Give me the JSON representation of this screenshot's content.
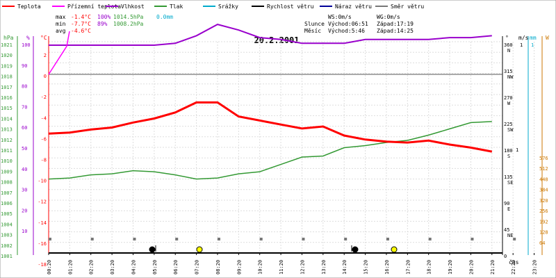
{
  "chart_data": {
    "type": "line",
    "title": "20.2.2001",
    "legend": [
      {
        "label": "Teplota",
        "color": "#ff0000"
      },
      {
        "label": "Přízemní teplota",
        "color": "#ff00ff"
      },
      {
        "label": "Vlhkost",
        "color": "#9900cc"
      },
      {
        "label": "Tlak",
        "color": "#339933"
      },
      {
        "label": "Srážky",
        "color": "#00aacc"
      },
      {
        "label": "Rychlost větru",
        "color": "#000000"
      },
      {
        "label": "Náraz větru",
        "color": "#000099"
      },
      {
        "label": "Směr větru",
        "color": "#777777"
      }
    ],
    "stats": {
      "max_label": "max",
      "max_temp": "-1.4°C",
      "max_hum": "100%",
      "max_press": "1014.5hPa",
      "max_rain": "0.0mm",
      "min_label": "min",
      "min_temp": "-7.7°C",
      "min_hum": "89%",
      "min_press": "1008.2hPa",
      "avg_label": "avg",
      "avg_temp": "-4.6°C"
    },
    "info": {
      "ws": "WS:0m/s",
      "wg": "WG:0m/s",
      "sun_label": "Slunce",
      "sun_rise": "Východ:06:51",
      "sun_set": "Západ:17:19",
      "moon_label": "Měsíc",
      "moon_rise": "Východ:5:46",
      "moon_set": "Západ:14:25"
    },
    "axes": {
      "hpa_unit": "hPa",
      "hpa_ticks": [
        "1021",
        "1020",
        "1019",
        "1018",
        "1017",
        "1016",
        "1015",
        "1014",
        "1013",
        "1012",
        "1011",
        "1010",
        "1009",
        "1008",
        "1007",
        "1006",
        "1005",
        "1004",
        "1003",
        "1002",
        "1001"
      ],
      "hum_unit": "%",
      "hum_ticks": [
        "100",
        "90",
        "80",
        "70",
        "60",
        "50",
        "40",
        "30",
        "20",
        "10"
      ],
      "temp_unit": "°C",
      "temp_ticks": [
        "2",
        "0",
        "-2",
        "-4",
        "-6",
        "-8",
        "-10",
        "-12",
        "-14",
        "-16",
        "-18"
      ],
      "dir_unit": "°",
      "dir_ticks": [
        {
          "deg": "360",
          "dir": "N"
        },
        {
          "deg": "315",
          "dir": "NW"
        },
        {
          "deg": "270",
          "dir": "W"
        },
        {
          "deg": "225",
          "dir": "SW"
        },
        {
          "deg": "180",
          "dir": "S"
        },
        {
          "deg": "135",
          "dir": "SE"
        },
        {
          "deg": "90",
          "dir": "E"
        },
        {
          "deg": "45",
          "dir": "NE"
        },
        {
          "deg": "0",
          "dir": ""
        }
      ],
      "ms_unit": "m/s",
      "ms_ticks": [
        "1",
        "1"
      ],
      "mm_unit": "mm",
      "mm_ticks": [
        "1"
      ],
      "w_unit": "W",
      "w_ticks": [
        "576",
        "512",
        "448",
        "384",
        "320",
        "256",
        "192",
        "128",
        "64"
      ],
      "time_unit": "čas",
      "x_labels": [
        "00:20",
        "01:20",
        "02:20",
        "03:20",
        "04:20",
        "05:20",
        "06:20",
        "07:20",
        "08:20",
        "09:20",
        "10:20",
        "11:20",
        "12:20",
        "13:20",
        "14:20",
        "15:20",
        "16:20",
        "17:20",
        "18:20",
        "19:20",
        "20:20",
        "21:20",
        "22:20",
        "23:20"
      ]
    },
    "series": [
      {
        "name": "Teplota",
        "unit": "°C",
        "values": [
          -5.9,
          -5.8,
          -5.5,
          -5.3,
          -4.8,
          -4.4,
          -3.8,
          -2.8,
          -2.8,
          -4.2,
          -4.6,
          -5.0,
          -5.4,
          -5.2,
          -6.1,
          -6.5,
          -6.7,
          -6.8,
          -6.6,
          -7.0,
          -7.3,
          -7.7
        ]
      },
      {
        "name": "Vlhkost",
        "unit": "%",
        "values": [
          100,
          100,
          100,
          100,
          100,
          100,
          99,
          95,
          89,
          92,
          96,
          97,
          99,
          99,
          99,
          97,
          97,
          97,
          97,
          96,
          96,
          95
        ]
      },
      {
        "name": "Tlak",
        "unit": "hPa",
        "values": [
          1008.2,
          1008.3,
          1008.6,
          1008.7,
          1009.0,
          1008.9,
          1008.6,
          1008.2,
          1008.3,
          1008.7,
          1008.9,
          1009.6,
          1010.3,
          1010.4,
          1011.2,
          1011.4,
          1011.7,
          1011.9,
          1012.4,
          1013.0,
          1013.6,
          1013.7
        ]
      },
      {
        "name": "Přízemní teplota",
        "unit": "°C",
        "values": [
          0,
          2.8
        ]
      }
    ],
    "wind_speed": [
      0,
      0,
      0,
      0,
      0,
      0,
      0,
      0,
      0,
      0,
      0,
      0,
      0,
      0,
      0,
      0,
      0,
      0,
      0,
      0,
      0,
      0
    ],
    "sun_events": [
      "06:51",
      "17:19"
    ],
    "moon_events": [
      "05:46",
      "14:25"
    ]
  }
}
